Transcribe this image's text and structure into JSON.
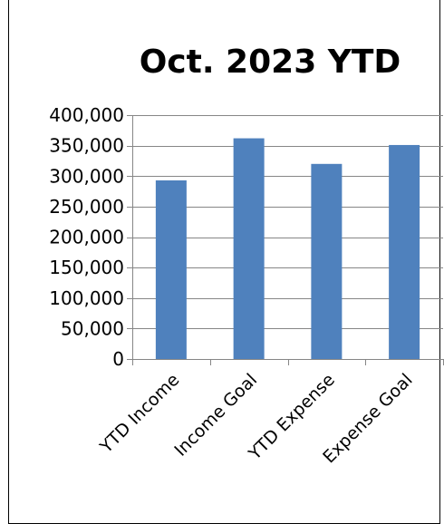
{
  "chart_data": {
    "type": "bar",
    "title": "Oct. 2023 YTD",
    "categories": [
      "YTD Income",
      "Income Goal",
      "YTD Expense",
      "Expense Goal"
    ],
    "values": [
      293000,
      362000,
      320000,
      351000
    ],
    "ylim": [
      0,
      400000
    ],
    "y_ticks": [
      0,
      50000,
      100000,
      150000,
      200000,
      250000,
      300000,
      350000,
      400000
    ],
    "y_tick_labels": [
      "0",
      "50,000",
      "100,000",
      "150,000",
      "200,000",
      "250,000",
      "300,000",
      "350,000",
      "400,000"
    ],
    "grid": true,
    "legend": "none",
    "bar_color": "#4f81bd",
    "grid_color": "#868686"
  }
}
